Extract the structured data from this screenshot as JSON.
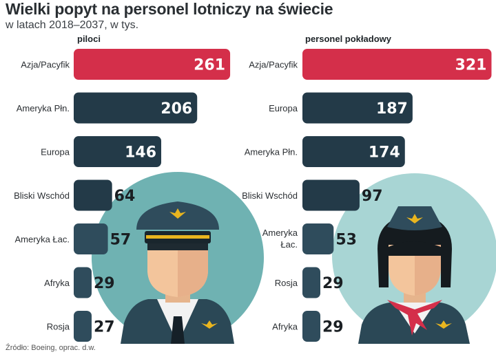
{
  "title": "Wielki popyt na personel lotniczy na świecie",
  "subtitle": "w latach 2018–2037, w tys.",
  "source": "Źródło: Boeing, oprac. d.w.",
  "colors": {
    "highlight": "#d42f4a",
    "dark": "#233a48",
    "mid": "#2f4c5c",
    "circle_left": "#6fb2b2",
    "circle_right": "#a8d5d4"
  },
  "chart_data": [
    {
      "type": "bar",
      "title": "piloci",
      "categories": [
        "Azja/Pacyfik",
        "Ameryka Płn.",
        "Europa",
        "Bliski Wschód",
        "Ameryka Łac.",
        "Afryka",
        "Rosja"
      ],
      "values": [
        261,
        206,
        146,
        64,
        57,
        29,
        27
      ]
    },
    {
      "type": "bar",
      "title": "personel pokładowy",
      "categories": [
        "Azja/Pacyfik",
        "Europa",
        "Ameryka Płn.",
        "Bliski Wschód",
        "Ameryka Łac.",
        "Rosja",
        "Afryka"
      ],
      "values": [
        321,
        187,
        174,
        97,
        53,
        29,
        29
      ]
    }
  ]
}
